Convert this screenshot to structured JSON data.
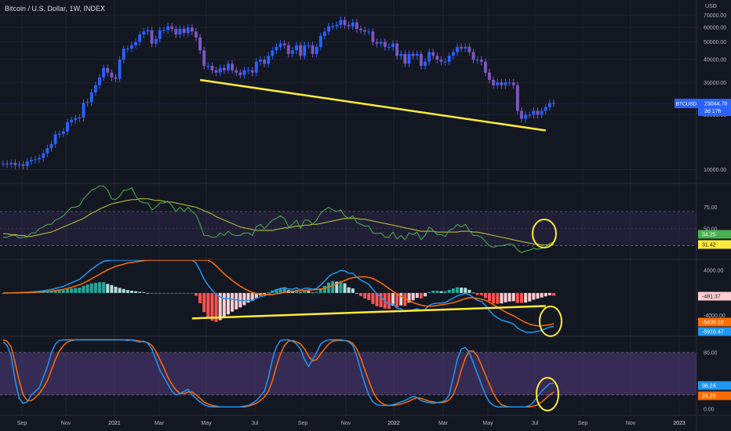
{
  "header": {
    "title": "Bitcoin / U.S. Dollar, 1W, INDEX",
    "currency": "USD"
  },
  "colors": {
    "background": "#131722",
    "bull": "#2962ff",
    "bear": "#7e57c2",
    "trendline": "#ffeb3b",
    "rsi_line": "#4caf50",
    "rsi_ma": "#c0ca33",
    "macd_line": "#2196f3",
    "signal_line": "#ff6d00",
    "hist_pos_strong": "#26a69a",
    "hist_pos_weak": "#b2dfdb",
    "hist_neg_strong": "#ff5252",
    "hist_neg_weak": "#ffcdd2",
    "stoch_k": "#2196f3",
    "stoch_d": "#ff6d00",
    "band_fill": "#7e57c2",
    "circle": "#ffeb3b"
  },
  "chart_data": [
    {
      "type": "candlestick",
      "pane": "price",
      "scale": "log",
      "ylim": [
        8500,
        80000
      ],
      "yticks": [
        {
          "value": 10000,
          "label": "10000.00"
        },
        {
          "value": 20000,
          "label": "20000.00"
        },
        {
          "value": 30000,
          "label": "30000.00"
        },
        {
          "value": 40000,
          "label": "40000.00"
        },
        {
          "value": 50000,
          "label": "50000.00"
        },
        {
          "value": 60000,
          "label": "60000.00"
        },
        {
          "value": 70000,
          "label": "70000.00"
        }
      ],
      "closes": [
        10800,
        10700,
        10900,
        10600,
        10700,
        10500,
        11100,
        11300,
        11400,
        11600,
        12300,
        13100,
        13800,
        15600,
        15700,
        16200,
        18200,
        18700,
        19100,
        19300,
        23200,
        23400,
        26500,
        29000,
        32000,
        36000,
        34000,
        32000,
        31500,
        40000,
        46000,
        46000,
        48000,
        50000,
        55000,
        57000,
        58000,
        49000,
        52000,
        58000,
        58000,
        61000,
        59000,
        55000,
        59000,
        56000,
        60000,
        57000,
        53000,
        45000,
        37000,
        37000,
        35000,
        34000,
        36000,
        35000,
        38000,
        35000,
        34000,
        33000,
        35000,
        35000,
        34000,
        39000,
        40000,
        38000,
        42000,
        45000,
        47000,
        49000,
        48000,
        43000,
        45000,
        48000,
        42000,
        48000,
        48000,
        43000,
        47000,
        54000,
        57000,
        61000,
        61000,
        62000,
        66000,
        62000,
        61000,
        64000,
        59000,
        58000,
        57000,
        57000,
        50000,
        49000,
        50000,
        47000,
        47000,
        49000,
        42000,
        43000,
        38000,
        43000,
        42000,
        43000,
        37000,
        39000,
        44000,
        42000,
        40000,
        39000,
        39000,
        42000,
        44000,
        47000,
        46000,
        47000,
        44000,
        40000,
        40000,
        39000,
        34000,
        31000,
        29000,
        30000,
        29000,
        30000,
        30000,
        29000,
        21000,
        19000,
        20000,
        20000,
        21000,
        20000,
        21000,
        22000,
        23200,
        23044.79
      ],
      "last": {
        "value": "23044.79",
        "symbol": "BTCUSD",
        "countdown": "3d 17h"
      },
      "trendline": {
        "from": {
          "index": 49,
          "value": 31000
        },
        "to": {
          "index": 135,
          "value": 16400
        }
      }
    },
    {
      "type": "line",
      "pane": "rsi",
      "ylim": [
        15,
        102
      ],
      "yticks": [
        {
          "value": 75,
          "label": "75.00"
        },
        {
          "value": 50,
          "label": "50.00"
        }
      ],
      "bands": [
        70,
        30
      ],
      "series": [
        {
          "values": [
            40,
            40,
            42,
            42,
            39,
            40,
            40,
            45,
            45,
            50,
            52,
            55,
            55,
            60,
            62,
            65,
            70,
            75,
            75,
            77,
            85,
            90,
            95,
            97,
            100,
            100,
            95,
            85,
            84,
            88,
            95,
            95,
            98,
            88,
            82,
            80,
            80,
            72,
            75,
            80,
            80,
            82,
            77,
            70,
            75,
            70,
            75,
            70,
            66,
            55,
            42,
            42,
            40,
            40,
            45,
            42,
            47,
            43,
            42,
            42,
            45,
            45,
            42,
            52,
            55,
            50,
            55,
            60,
            62,
            65,
            62,
            52,
            55,
            60,
            50,
            60,
            60,
            55,
            60,
            68,
            72,
            75,
            72,
            70,
            72,
            65,
            62,
            65,
            57,
            55,
            53,
            53,
            45,
            44,
            45,
            40,
            40,
            46,
            38,
            42,
            37,
            45,
            43,
            46,
            37,
            42,
            52,
            48,
            43,
            43,
            41,
            48,
            50,
            55,
            52,
            55,
            48,
            42,
            42,
            40,
            35,
            30,
            28,
            30,
            30,
            31,
            32,
            31,
            25,
            22,
            24,
            25,
            27,
            26,
            27,
            29,
            33,
            34.25
          ]
        },
        {
          "values": [
            44,
            44,
            43,
            43,
            42,
            42,
            41,
            41,
            42,
            43,
            44,
            45,
            46,
            48,
            50,
            52,
            54,
            56,
            58,
            60,
            62,
            65,
            68,
            70,
            73,
            75,
            77,
            79,
            80,
            81,
            82,
            83,
            84,
            84,
            85,
            85,
            85,
            84,
            83,
            83,
            82,
            81,
            81,
            80,
            79,
            78,
            77,
            76,
            75,
            73,
            71,
            69,
            67,
            64,
            62,
            60,
            58,
            56,
            54,
            52,
            51,
            50,
            49,
            48,
            48,
            48,
            48,
            48,
            49,
            50,
            51,
            51,
            52,
            53,
            53,
            54,
            54,
            55,
            55,
            56,
            57,
            58,
            59,
            60,
            61,
            62,
            62,
            62,
            62,
            61,
            61,
            60,
            59,
            58,
            57,
            56,
            55,
            54,
            53,
            52,
            51,
            50,
            49,
            48,
            47,
            47,
            47,
            47,
            46,
            46,
            46,
            46,
            46,
            46,
            47,
            47,
            47,
            46,
            46,
            45,
            44,
            43,
            42,
            41,
            40,
            39,
            38,
            37,
            36,
            35,
            34,
            33,
            32,
            32,
            31,
            31,
            31.3,
            31.42
          ]
        }
      ],
      "last_labels": [
        "34.25",
        "31.42"
      ]
    },
    {
      "type": "bar",
      "pane": "macd",
      "ylim": [
        -7500,
        5800
      ],
      "yticks": [
        {
          "value": 4000,
          "label": "4000.00"
        },
        {
          "value": -4000,
          "label": "-4000.00"
        }
      ],
      "x_categories": [
        "Sep",
        "Nov",
        "2021",
        "Mar",
        "May",
        "Jul",
        "Sep",
        "Nov",
        "2022",
        "Mar",
        "May",
        "Jul",
        "Sep",
        "Nov",
        "2023"
      ],
      "macd": [
        0,
        0,
        30,
        50,
        80,
        100,
        130,
        180,
        230,
        290,
        390,
        500,
        620,
        800,
        980,
        1160,
        1500,
        1800,
        2100,
        2400,
        3000,
        3600,
        4200,
        4700,
        5200,
        5600,
        5700,
        5800,
        5800,
        5800,
        5800,
        5800,
        5800,
        5800,
        5800,
        5800,
        5800,
        5800,
        5800,
        5800,
        5800,
        5800,
        5800,
        5800,
        5800,
        5800,
        5800,
        5800,
        5300,
        4000,
        2400,
        1400,
        500,
        -300,
        -700,
        -1000,
        -1000,
        -1100,
        -1200,
        -1350,
        -1350,
        -1300,
        -1300,
        -950,
        -650,
        -500,
        -200,
        200,
        550,
        800,
        950,
        700,
        650,
        900,
        520,
        820,
        860,
        620,
        800,
        1400,
        2100,
        2900,
        3400,
        3600,
        4000,
        3900,
        3500,
        3500,
        2800,
        2300,
        1900,
        1500,
        600,
        -150,
        -700,
        -1450,
        -2000,
        -1950,
        -2700,
        -2800,
        -3300,
        -3100,
        -3000,
        -2800,
        -3100,
        -2900,
        -2200,
        -1900,
        -1800,
        -1800,
        -1700,
        -1300,
        -900,
        -500,
        -300,
        -100,
        -300,
        -800,
        -1300,
        -1500,
        -2200,
        -3100,
        -3900,
        -4400,
        -4800,
        -5000,
        -5200,
        -5500,
        -6200,
        -6600,
        -6900,
        -7000,
        -6900,
        -6800,
        -6600,
        -6300,
        -6000,
        -5916.47
      ],
      "signal": [
        0,
        0,
        10,
        20,
        30,
        50,
        70,
        90,
        120,
        160,
        200,
        260,
        330,
        420,
        530,
        650,
        810,
        1000,
        1220,
        1450,
        1750,
        2100,
        2500,
        2900,
        3300,
        3700,
        4100,
        4400,
        4700,
        4900,
        5100,
        5300,
        5400,
        5500,
        5600,
        5700,
        5800,
        5800,
        5800,
        5800,
        5800,
        5800,
        5800,
        5800,
        5800,
        5800,
        5800,
        5800,
        5800,
        5800,
        5800,
        5800,
        5400,
        4800,
        4100,
        3400,
        2800,
        2200,
        1700,
        1200,
        800,
        400,
        100,
        -100,
        -200,
        -300,
        -300,
        -250,
        -150,
        -50,
        100,
        200,
        250,
        350,
        400,
        450,
        500,
        550,
        600,
        700,
        850,
        1050,
        1300,
        1600,
        1900,
        2200,
        2500,
        2700,
        2800,
        2850,
        2850,
        2750,
        2550,
        2200,
        1800,
        1300,
        800,
        300,
        -200,
        -600,
        -1000,
        -1400,
        -1700,
        -1950,
        -2150,
        -2300,
        -2350,
        -2300,
        -2200,
        -2100,
        -2000,
        -1850,
        -1700,
        -1500,
        -1250,
        -1000,
        -850,
        -850,
        -950,
        -1100,
        -1300,
        -1650,
        -2050,
        -2500,
        -2950,
        -3350,
        -3700,
        -4050,
        -4450,
        -4850,
        -5200,
        -5500,
        -5700,
        -5800,
        -5800,
        -5700,
        -5600,
        -5435.1
      ],
      "trendline": {
        "from": {
          "index": 47,
          "value": -4500
        },
        "to": {
          "index": 135,
          "value": -2300
        }
      },
      "last_labels": [
        "-481.37",
        "-5435.10",
        "-5916.47"
      ]
    },
    {
      "type": "line",
      "pane": "stoch",
      "ylim": [
        -9,
        102
      ],
      "yticks": [
        {
          "value": 80,
          "label": "80.00"
        },
        {
          "value": 20,
          "label": "20.00"
        },
        {
          "value": 0,
          "label": "0.00"
        }
      ],
      "bands": [
        80,
        20
      ],
      "series": [
        {
          "values": [
            95,
            90,
            75,
            40,
            15,
            8,
            10,
            20,
            25,
            30,
            45,
            60,
            80,
            92,
            97,
            98,
            98,
            98,
            98,
            98,
            98,
            98,
            98,
            98,
            98,
            98,
            98,
            98,
            98,
            98,
            98,
            97,
            98,
            96,
            95,
            96,
            93,
            85,
            70,
            55,
            45,
            35,
            25,
            20,
            22,
            25,
            28,
            20,
            15,
            10,
            6,
            4,
            3,
            3,
            3,
            3,
            3,
            3,
            3,
            3,
            4,
            5,
            8,
            12,
            18,
            25,
            45,
            70,
            88,
            97,
            98,
            98,
            96,
            92,
            85,
            70,
            60,
            70,
            80,
            92,
            96,
            98,
            98,
            98,
            98,
            97,
            95,
            90,
            75,
            55,
            35,
            20,
            10,
            6,
            5,
            5,
            5,
            6,
            8,
            10,
            12,
            15,
            18,
            16,
            12,
            10,
            9,
            8,
            9,
            10,
            12,
            20,
            45,
            70,
            85,
            87,
            80,
            65,
            50,
            35,
            20,
            10,
            5,
            3,
            3,
            3,
            3,
            3,
            3,
            3,
            3,
            5,
            10,
            18,
            25,
            31,
            36,
            36.24
          ]
        },
        {
          "values": [
            98,
            96,
            88,
            65,
            40,
            20,
            12,
            12,
            16,
            22,
            30,
            40,
            55,
            70,
            82,
            90,
            95,
            97,
            98,
            98,
            98,
            98,
            98,
            98,
            98,
            98,
            98,
            98,
            98,
            98,
            98,
            98,
            98,
            97,
            96,
            95,
            94,
            90,
            82,
            70,
            58,
            45,
            35,
            27,
            22,
            22,
            24,
            24,
            20,
            15,
            10,
            7,
            5,
            4,
            3,
            3,
            3,
            3,
            3,
            3,
            3,
            4,
            6,
            8,
            12,
            17,
            25,
            40,
            60,
            78,
            90,
            96,
            97,
            95,
            92,
            85,
            75,
            68,
            70,
            78,
            85,
            92,
            96,
            97,
            97,
            97,
            96,
            93,
            85,
            72,
            55,
            40,
            25,
            15,
            9,
            6,
            5,
            5,
            6,
            7,
            9,
            11,
            14,
            16,
            15,
            13,
            11,
            10,
            9,
            9,
            10,
            13,
            20,
            35,
            55,
            72,
            82,
            82,
            75,
            62,
            48,
            35,
            22,
            12,
            6,
            4,
            3,
            3,
            3,
            3,
            3,
            3,
            4,
            6,
            10,
            15,
            20,
            24.2
          ]
        }
      ],
      "last_labels": [
        "36.24",
        "24.20"
      ]
    }
  ],
  "axis": {
    "x_labels": [
      "Sep",
      "Nov",
      "2021",
      "Mar",
      "May",
      "Jul",
      "Sep",
      "Nov",
      "2022",
      "Mar",
      "May",
      "Jul",
      "Sep",
      "Nov",
      "2023"
    ]
  }
}
